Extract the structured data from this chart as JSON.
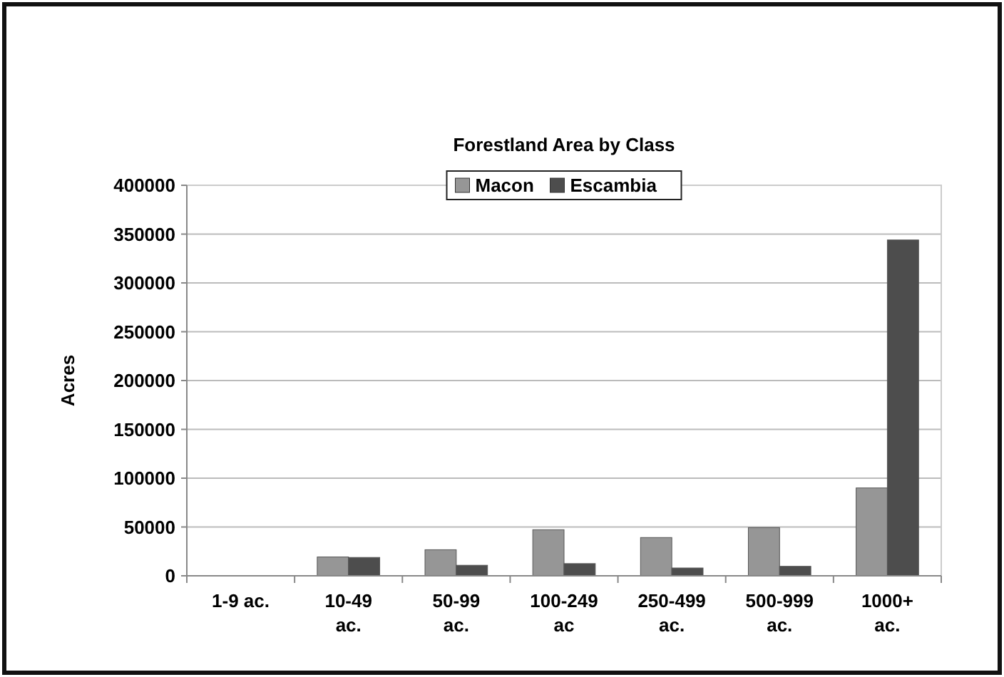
{
  "chart_data": {
    "type": "bar",
    "title": "Forestland Area by Class",
    "ylabel": "Acres",
    "categories": [
      "1-9 ac.",
      "10-49 ac.",
      "50-99 ac.",
      "100-249 ac",
      "250-499 ac.",
      "500-999 ac.",
      "1000+ ac."
    ],
    "series": [
      {
        "name": "Macon",
        "color": "#969696",
        "values": [
          0,
          19300,
          26700,
          47200,
          39200,
          49400,
          90000
        ]
      },
      {
        "name": "Escambia",
        "color": "#4d4d4d",
        "values": [
          0,
          18800,
          10800,
          12500,
          8000,
          9700,
          344000
        ]
      }
    ],
    "ylim": [
      0,
      400000
    ],
    "yticks": [
      0,
      50000,
      100000,
      150000,
      200000,
      250000,
      300000,
      350000,
      400000
    ],
    "grid": "y",
    "legend": "top"
  }
}
